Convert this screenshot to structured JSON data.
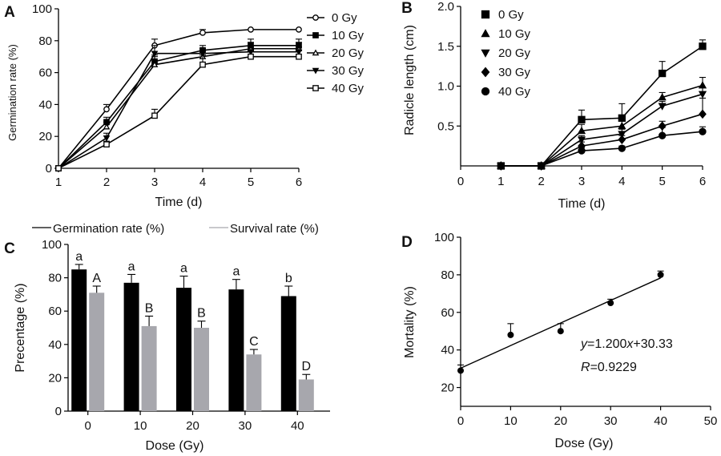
{
  "chart_data": [
    {
      "panel": "A",
      "type": "line",
      "xlabel": "Time (d)",
      "ylabel": "Germination rate (%)",
      "xlim": [
        1,
        6
      ],
      "ylim": [
        0,
        100
      ],
      "x_ticks": [
        1,
        2,
        3,
        4,
        5,
        6
      ],
      "y_ticks": [
        0,
        20,
        40,
        60,
        80,
        100
      ],
      "legend_position": "right",
      "x": [
        1,
        2,
        3,
        4,
        5,
        6
      ],
      "series": [
        {
          "name": "0 Gy",
          "marker": "open-circle",
          "values": [
            0,
            37,
            77,
            85,
            87,
            87
          ],
          "errors": [
            0,
            3,
            4,
            2,
            0,
            0
          ]
        },
        {
          "name": "10 Gy",
          "marker": "filled-square",
          "values": [
            0,
            29,
            67,
            74,
            77,
            77
          ],
          "errors": [
            0,
            3,
            4,
            3,
            4,
            4
          ]
        },
        {
          "name": "20 Gy",
          "marker": "open-triangle",
          "values": [
            0,
            26,
            65,
            70,
            75,
            75
          ],
          "errors": [
            0,
            3,
            5,
            4,
            4,
            4
          ]
        },
        {
          "name": "30 Gy",
          "marker": "filled-triangle-down",
          "values": [
            0,
            19,
            72,
            72,
            73,
            73
          ],
          "errors": [
            0,
            3,
            5,
            3,
            3,
            3
          ]
        },
        {
          "name": "40 Gy",
          "marker": "open-square",
          "values": [
            0,
            15,
            33,
            65,
            70,
            70
          ],
          "errors": [
            0,
            2,
            4,
            6,
            4,
            4
          ]
        }
      ]
    },
    {
      "panel": "B",
      "type": "line",
      "xlabel": "Time (d)",
      "ylabel": "Radicle length (cm)",
      "xlim": [
        0,
        6
      ],
      "ylim": [
        0,
        2.0
      ],
      "x_ticks": [
        0,
        1,
        2,
        3,
        4,
        5,
        6
      ],
      "y_ticks": [
        0.5,
        1.0,
        1.5,
        2.0
      ],
      "y_tick_labels": [
        "0.5",
        "1.0",
        "1.5",
        "2.0"
      ],
      "legend_position": "top-left",
      "x": [
        1,
        2,
        3,
        4,
        5,
        6
      ],
      "series": [
        {
          "name": "0 Gy",
          "marker": "filled-square",
          "values": [
            0,
            0,
            0.58,
            0.6,
            1.16,
            1.5
          ],
          "errors": [
            0,
            0,
            0.12,
            0.18,
            0.15,
            0.08
          ]
        },
        {
          "name": "10 Gy",
          "marker": "filled-triangle",
          "values": [
            0,
            0,
            0.44,
            0.5,
            0.86,
            1.01
          ],
          "errors": [
            0,
            0,
            0.08,
            0.08,
            0.06,
            0.1
          ]
        },
        {
          "name": "20 Gy",
          "marker": "filled-triangle-down",
          "values": [
            0,
            0,
            0.33,
            0.4,
            0.75,
            0.9
          ],
          "errors": [
            0,
            0,
            0.05,
            0.06,
            0.06,
            0.08
          ]
        },
        {
          "name": "30 Gy",
          "marker": "filled-diamond",
          "values": [
            0,
            0,
            0.25,
            0.33,
            0.5,
            0.65
          ],
          "errors": [
            0,
            0,
            0.05,
            0.05,
            0.06,
            0.2
          ]
        },
        {
          "name": "40 Gy",
          "marker": "filled-circle",
          "values": [
            0,
            0,
            0.19,
            0.22,
            0.38,
            0.43
          ],
          "errors": [
            0,
            0,
            0.04,
            0.03,
            0.1,
            0.06
          ]
        }
      ]
    },
    {
      "panel": "C",
      "type": "bar",
      "xlabel": "Dose (Gy)",
      "ylabel": "Precentage (%)",
      "ylim": [
        0,
        100
      ],
      "y_ticks": [
        0,
        20,
        40,
        60,
        80,
        100
      ],
      "categories": [
        "0",
        "10",
        "20",
        "30",
        "40"
      ],
      "legend_position": "top",
      "series": [
        {
          "name": "Germination rate (%)",
          "color": "#000000",
          "values": [
            85,
            77,
            74,
            73,
            69
          ],
          "errors": [
            3,
            5,
            7,
            6,
            6
          ],
          "letters": [
            "a",
            "a",
            "a",
            "a",
            "b"
          ]
        },
        {
          "name": "Survival rate (%)",
          "color": "#a7a7ad",
          "values": [
            71,
            51,
            50,
            34,
            19
          ],
          "errors": [
            4,
            6,
            4,
            3,
            3
          ],
          "letters": [
            "A",
            "B",
            "B",
            "C",
            "D"
          ]
        }
      ]
    },
    {
      "panel": "D",
      "type": "scatter",
      "xlabel": "Dose (Gy)",
      "ylabel": "Mortality (%)",
      "xlim": [
        0,
        50
      ],
      "ylim": [
        10,
        100
      ],
      "x_ticks": [
        0,
        10,
        20,
        30,
        40,
        50
      ],
      "y_ticks": [
        20,
        40,
        60,
        80,
        100
      ],
      "x": [
        0,
        10,
        20,
        30,
        40
      ],
      "values": [
        29,
        48,
        50,
        65,
        80
      ],
      "errors": [
        3,
        6,
        4,
        2,
        2
      ],
      "fit": {
        "slope": 1.2,
        "intercept": 30.33,
        "x_range": [
          0,
          40
        ]
      },
      "equation": {
        "y_var": "y",
        "rhs_a": "=1.200",
        "x_var": "x",
        "rhs_b": "+30.33"
      },
      "r_text": {
        "var": "R",
        "value": "=0.9229"
      }
    }
  ]
}
